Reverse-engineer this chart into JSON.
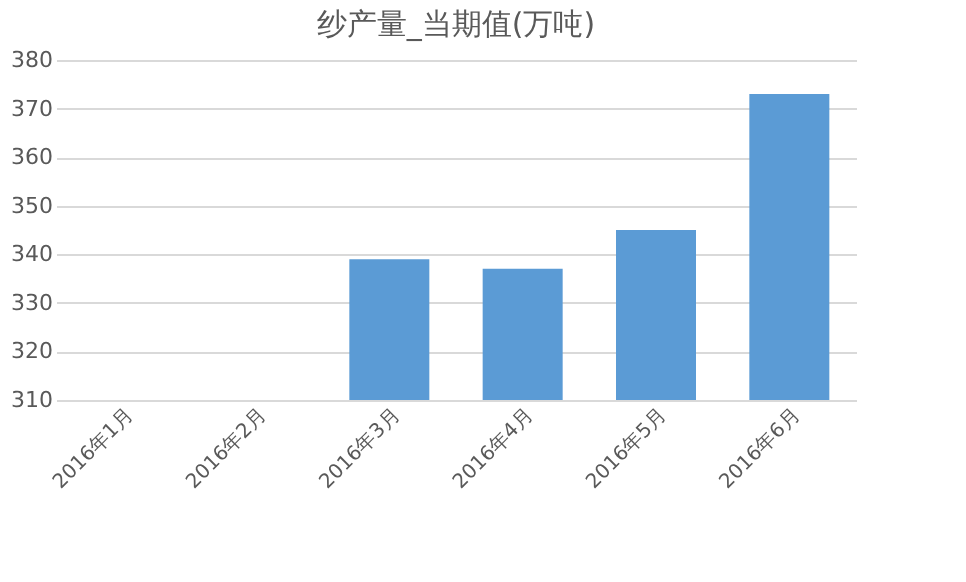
{
  "chart_data": {
    "type": "bar",
    "title": "纱产量_当期值(万吨)",
    "categories": [
      "2016年1月",
      "2016年2月",
      "2016年3月",
      "2016年4月",
      "2016年5月",
      "2016年6月"
    ],
    "values": [
      null,
      null,
      339,
      337,
      345,
      373
    ],
    "color": "#5b9bd5",
    "ylim": [
      310,
      380
    ],
    "yticks": [
      310,
      320,
      330,
      340,
      350,
      360,
      370,
      380
    ],
    "grid": "y"
  }
}
